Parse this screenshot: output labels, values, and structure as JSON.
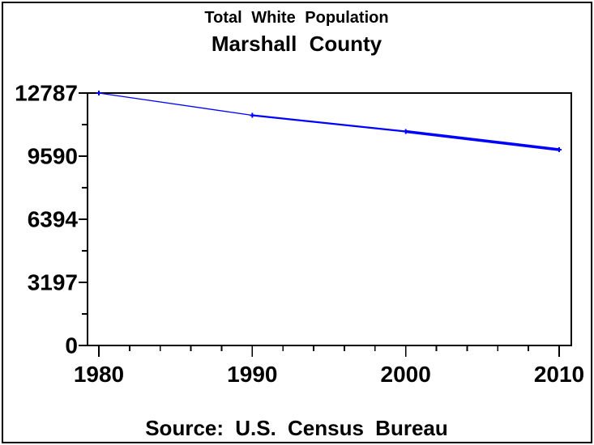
{
  "figure": {
    "title1": "Total White Population",
    "title2": "Marshall County",
    "source": "Source: U.S. Census Bureau"
  },
  "chart_data": {
    "type": "line",
    "title": "Total White Population",
    "subtitle": "Marshall County",
    "footnote": "Source: U.S. Census Bureau",
    "xlabel": "",
    "ylabel": "",
    "x": [
      1980,
      1990,
      2000,
      2010
    ],
    "series": [
      {
        "name": "Total White Population",
        "values": [
          12787,
          11660,
          10840,
          9920
        ]
      }
    ],
    "ylim": [
      0,
      12787
    ],
    "y_ticks": [
      0,
      3197,
      6394,
      9590,
      12787
    ],
    "y_tick_labels": [
      "0",
      "3197",
      "6394",
      "9590",
      "12787"
    ],
    "x_ticks": [
      1980,
      1990,
      2000,
      2010
    ],
    "x_tick_labels": [
      "1980",
      "1990",
      "2000",
      "2010"
    ],
    "x_minor_ticks_between_major": 4,
    "y_minor_ticks_between_major": 1,
    "grid": false,
    "legend": "none",
    "frame": true,
    "line_color": "#0000ff",
    "marker": "plus",
    "text_color": "#000000"
  }
}
